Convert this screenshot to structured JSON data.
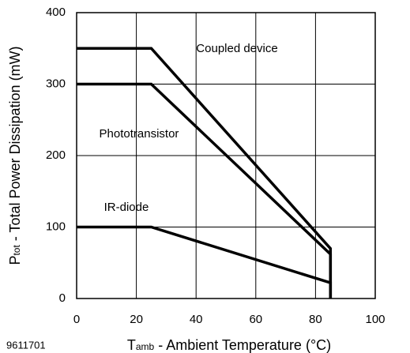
{
  "chart_data": {
    "type": "line",
    "y_label_symbol": "P",
    "y_label_subscript": "tot",
    "y_label": "- Total Power Dissipation (mW)",
    "x_label_symbol": "T",
    "x_label_subscript": "amb",
    "x_label": "- Ambient Temperature (°C)",
    "figure_number": "9611701",
    "xlim": [
      0,
      100
    ],
    "xticks": [
      0,
      20,
      40,
      60,
      80,
      100
    ],
    "ylim": [
      0,
      400
    ],
    "yticks": [
      0,
      100,
      200,
      300,
      400
    ],
    "grid": true,
    "series": [
      {
        "name": "Coupled device",
        "color": "#000000",
        "x": [
          0,
          25,
          85,
          85
        ],
        "values": [
          350,
          350,
          70,
          0
        ]
      },
      {
        "name": "Phototransistor",
        "color": "#000000",
        "x": [
          0,
          25,
          85,
          85
        ],
        "values": [
          300,
          300,
          62,
          0
        ]
      },
      {
        "name": "IR-diode",
        "color": "#000000",
        "x": [
          0,
          25,
          85,
          85
        ],
        "values": [
          100,
          100,
          22,
          0
        ]
      }
    ]
  }
}
